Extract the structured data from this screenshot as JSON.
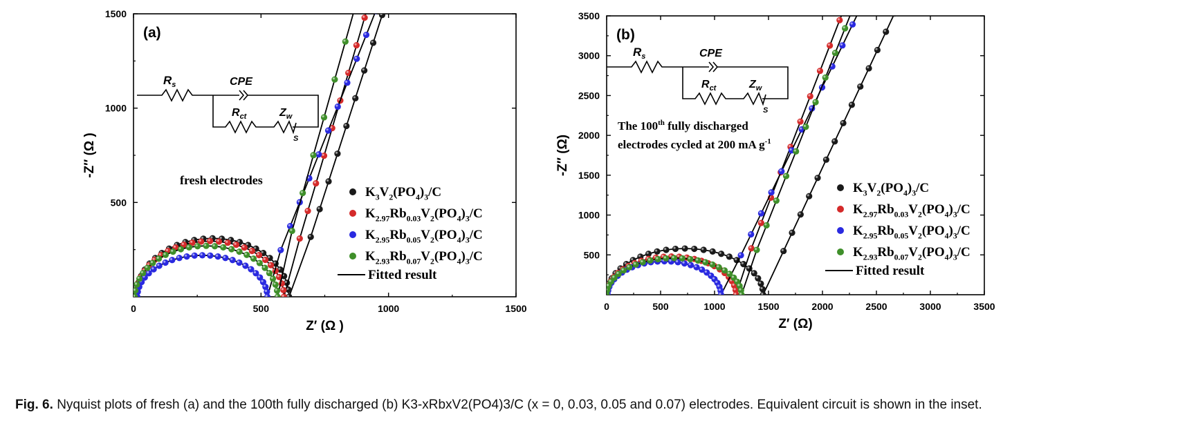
{
  "caption": {
    "label": "Fig. 6.",
    "text": "Nyquist plots of fresh (a) and the 100th fully discharged (b) K3-xRbxV2(PO4)3/C (x = 0, 0.03, 0.05 and 0.07) electrodes. Equivalent circuit is shown in the inset."
  },
  "colors": {
    "black": "#1a1a1a",
    "red": "#d42a2a",
    "blue": "#2a2ae0",
    "green": "#3f8f2a"
  },
  "chart_data": [
    {
      "panel": "(a)",
      "type": "scatter",
      "xlabel": "Z′ (Ω )",
      "ylabel": "-Z′′ (Ω )",
      "xlim": [
        0,
        1500
      ],
      "ylim": [
        0,
        1500
      ],
      "xticks": [
        "0",
        "500",
        "1000",
        "1500"
      ],
      "yticks": [
        "500",
        "1000",
        "1500"
      ],
      "annotation": "fresh electrodes",
      "circuit_labels": {
        "rs": "R",
        "rs_sub": "s",
        "cpe": "CPE",
        "rct": "R",
        "rct_sub": "ct",
        "zw": "Z",
        "zw_sub": "w",
        "s": "S"
      },
      "series": [
        {
          "name": "K3V2(PO4)3/C",
          "label_main": [
            "K",
            "3",
            "V",
            "2",
            "(PO",
            "4",
            ")",
            "3",
            "/C"
          ],
          "color": "black",
          "arc": {
            "r0": 10,
            "diam": 600,
            "height": 310,
            "tail_start": 660,
            "tail_slope": 4.2,
            "tail_end": 1430
          }
        },
        {
          "name": "K2.97Rb0.03V2(PO4)3/C",
          "label_main": [
            "K",
            "2.97",
            "Rb",
            "0.03",
            "V",
            "2",
            "(PO",
            "4",
            ")",
            "3",
            "/C"
          ],
          "color": "red",
          "arc": {
            "r0": 10,
            "diam": 580,
            "height": 295,
            "tail_start": 620,
            "tail_slope": 4.6,
            "tail_end": 1320
          }
        },
        {
          "name": "K2.95Rb0.05V2(PO4)3/C",
          "label_main": [
            "K",
            "2.95",
            "Rb",
            "0.05",
            "V",
            "2",
            "(PO",
            "4",
            ")",
            "3",
            "/C"
          ],
          "color": "blue",
          "arc": {
            "r0": 15,
            "diam": 510,
            "height": 220,
            "tail_start": 540,
            "tail_slope": 3.4,
            "tail_end": 1360
          }
        },
        {
          "name": "K2.93Rb0.07V2(PO4)3/C",
          "label_main": [
            "K",
            "2.93",
            "Rb",
            "0.07",
            "V",
            "2",
            "(PO",
            "4",
            ")",
            "3",
            "/C"
          ],
          "color": "green",
          "arc": {
            "r0": 5,
            "diam": 560,
            "height": 270,
            "tail_start": 580,
            "tail_slope": 4.8,
            "tail_end": 1500
          }
        }
      ],
      "fitted_label": "Fitted result"
    },
    {
      "panel": "(b)",
      "type": "scatter",
      "xlabel": "Z′ (Ω)",
      "ylabel": "-Z′′ (Ω)",
      "xlim": [
        0,
        3500
      ],
      "ylim": [
        0,
        3500
      ],
      "xticks": [
        "0",
        "500",
        "1000",
        "1500",
        "2000",
        "2500",
        "3000",
        "3500"
      ],
      "yticks": [
        "500",
        "1000",
        "1500",
        "2000",
        "2500",
        "3000",
        "3500"
      ],
      "annotation_line1": "The 100",
      "annotation_sup": "th",
      "annotation_line1_end": " fully discharged",
      "annotation_line2": "electrodes cycled at 200 mA g",
      "annotation_line2_sup": "-1",
      "circuit_labels": {
        "rs": "R",
        "rs_sub": "s",
        "cpe": "CPE",
        "rct": "R",
        "rct_sub": "ct",
        "zw": "Z",
        "zw_sub": "w",
        "s": "S"
      },
      "series": [
        {
          "name": "K3V2(PO4)3/C",
          "label_main": [
            "K",
            "3",
            "V",
            "2",
            "(PO",
            "4",
            ")",
            "3",
            "/C"
          ],
          "color": "black",
          "arc": {
            "r0": 0,
            "diam": 1450,
            "height": 580,
            "tail_start": 1560,
            "tail_slope": 2.9,
            "tail_end": 3300
          }
        },
        {
          "name": "K2.97Rb0.03V2(PO4)3/C",
          "label_main": [
            "K",
            "2.97",
            "Rb",
            "0.03",
            "V",
            "2",
            "(PO",
            "4",
            ")",
            "3",
            "/C"
          ],
          "color": "red",
          "arc": {
            "r0": 0,
            "diam": 1200,
            "height": 480,
            "tail_start": 1250,
            "tail_slope": 3.5,
            "tail_end": 3250
          }
        },
        {
          "name": "K2.95Rb0.05V2(PO4)3/C",
          "label_main": [
            "K",
            "2.95",
            "Rb",
            "0.05",
            "V",
            "2",
            "(PO",
            "4",
            ")",
            "3",
            "/C"
          ],
          "color": "blue",
          "arc": {
            "r0": 10,
            "diam": 1050,
            "height": 420,
            "tail_start": 1150,
            "tail_slope": 2.8,
            "tail_end": 3220
          }
        },
        {
          "name": "K2.93Rb0.07V2(PO4)3/C",
          "label_main": [
            "K",
            "2.93",
            "Rb",
            "0.07",
            "V",
            "2",
            "(PO",
            "4",
            ")",
            "3",
            "/C"
          ],
          "color": "green",
          "arc": {
            "r0": 0,
            "diam": 1250,
            "height": 460,
            "tail_start": 1300,
            "tail_slope": 3.4,
            "tail_end": 3300
          }
        }
      ],
      "fitted_label": "Fitted result"
    }
  ]
}
